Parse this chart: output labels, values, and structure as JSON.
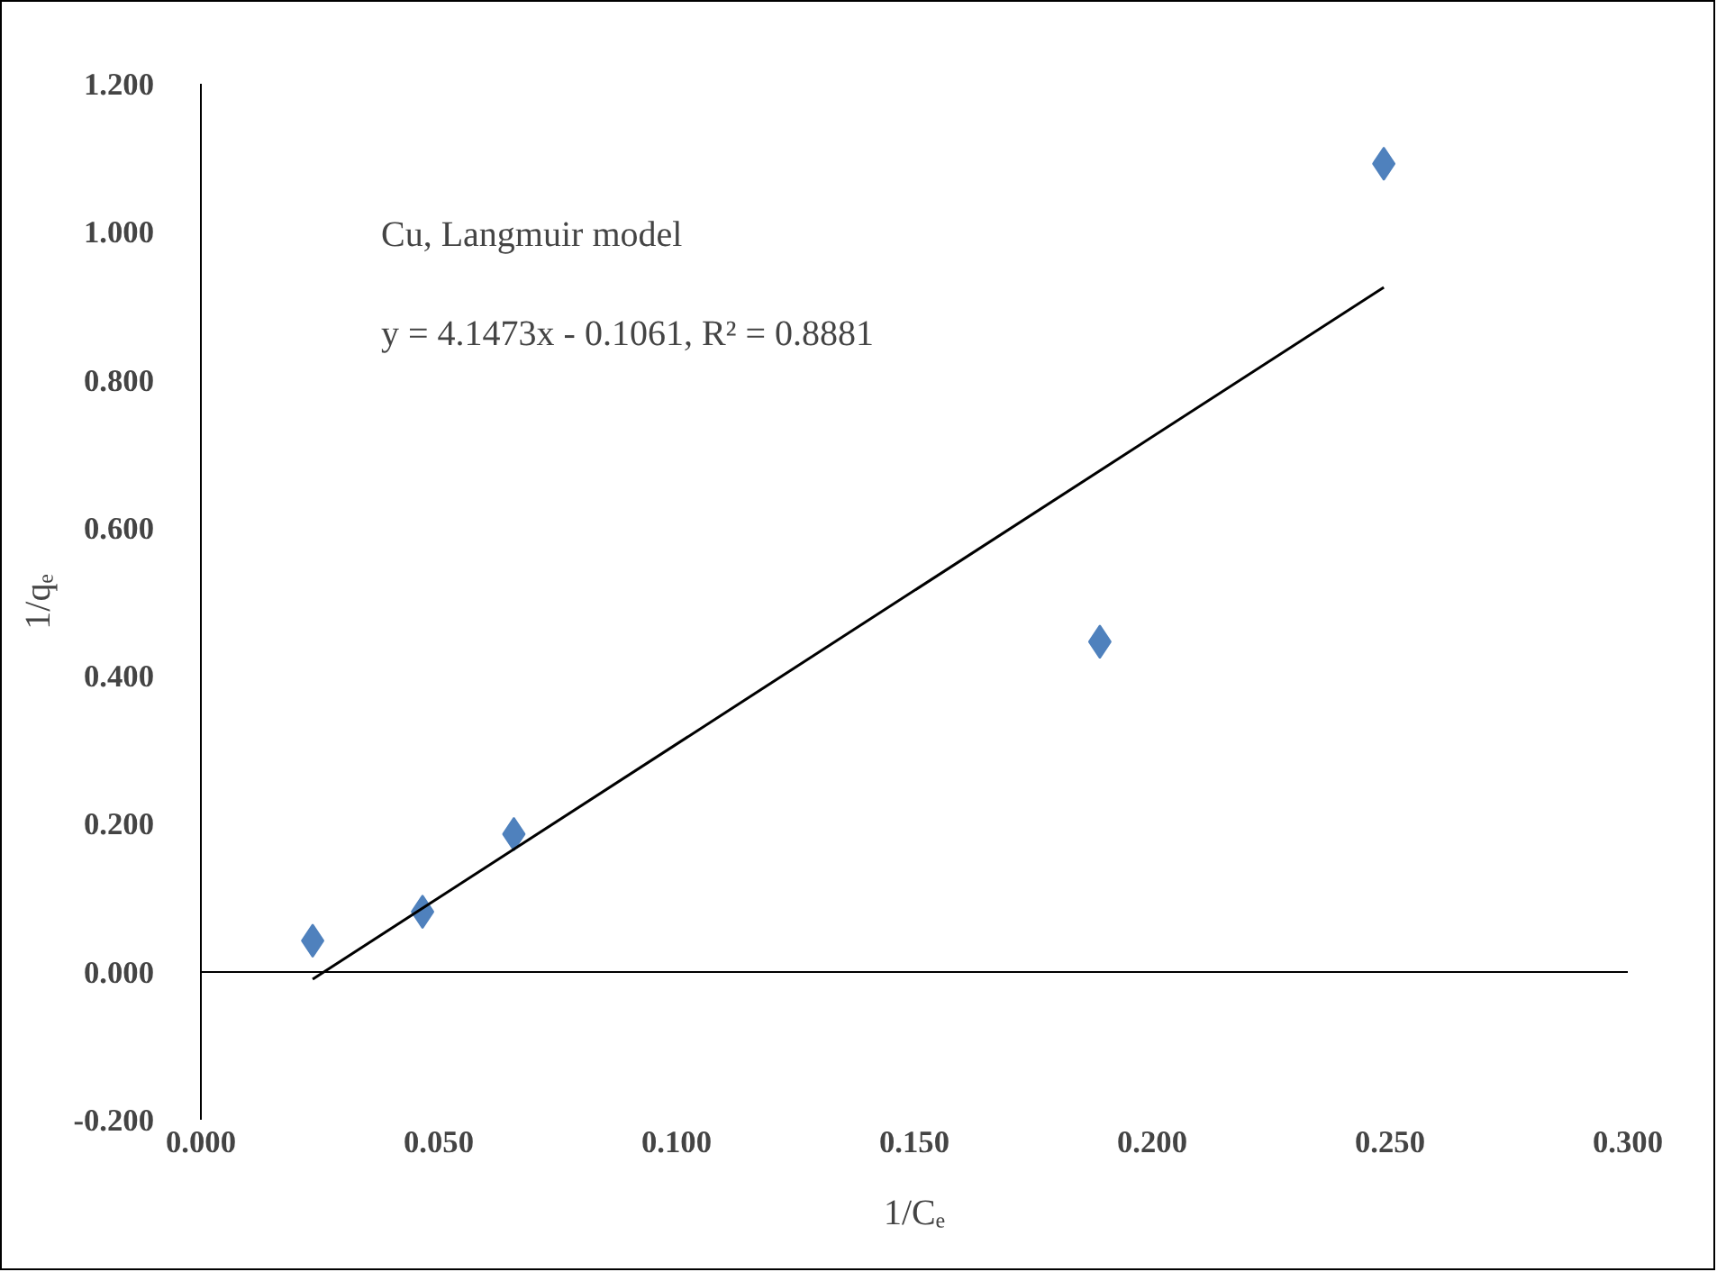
{
  "chart_data": {
    "type": "scatter",
    "xlabel": "1/Cₑ",
    "ylabel": "1/qₑ",
    "xlim": [
      0,
      0.3
    ],
    "ylim": [
      -0.2,
      1.2
    ],
    "xticks": [
      {
        "value": 0,
        "label": "0.000"
      },
      {
        "value": 0.05,
        "label": "0.050"
      },
      {
        "value": 0.1,
        "label": "0.100"
      },
      {
        "value": 0.15,
        "label": "0.150"
      },
      {
        "value": 0.2,
        "label": "0.200"
      },
      {
        "value": 0.25,
        "label": "0.250"
      },
      {
        "value": 0.3,
        "label": "0.300"
      }
    ],
    "yticks": [
      {
        "value": -0.2,
        "label": "-0.200"
      },
      {
        "value": 0,
        "label": "0.000"
      },
      {
        "value": 0.2,
        "label": "0.200"
      },
      {
        "value": 0.4,
        "label": "0.400"
      },
      {
        "value": 0.6,
        "label": "0.600"
      },
      {
        "value": 0.8,
        "label": "0.800"
      },
      {
        "value": 1.0,
        "label": "1.000"
      },
      {
        "value": 1.2,
        "label": "1.200"
      }
    ],
    "series": [
      {
        "color": "#4f81bd",
        "marker": "diamond",
        "x": [
          0.0235,
          0.0466,
          0.0658,
          0.189,
          0.2487
        ],
        "values": [
          0.042,
          0.081,
          0.186,
          0.446,
          1.092
        ]
      },
      {
        "type": "line",
        "color": "#000000",
        "line_style": "solid",
        "x": [
          0.0235,
          0.2487
        ],
        "values": [
          -0.01,
          0.925
        ]
      }
    ],
    "annotations": [
      "Cu, Langmuir model",
      "y = 4.1473x - 0.1061,  R² = 0.8881"
    ]
  }
}
